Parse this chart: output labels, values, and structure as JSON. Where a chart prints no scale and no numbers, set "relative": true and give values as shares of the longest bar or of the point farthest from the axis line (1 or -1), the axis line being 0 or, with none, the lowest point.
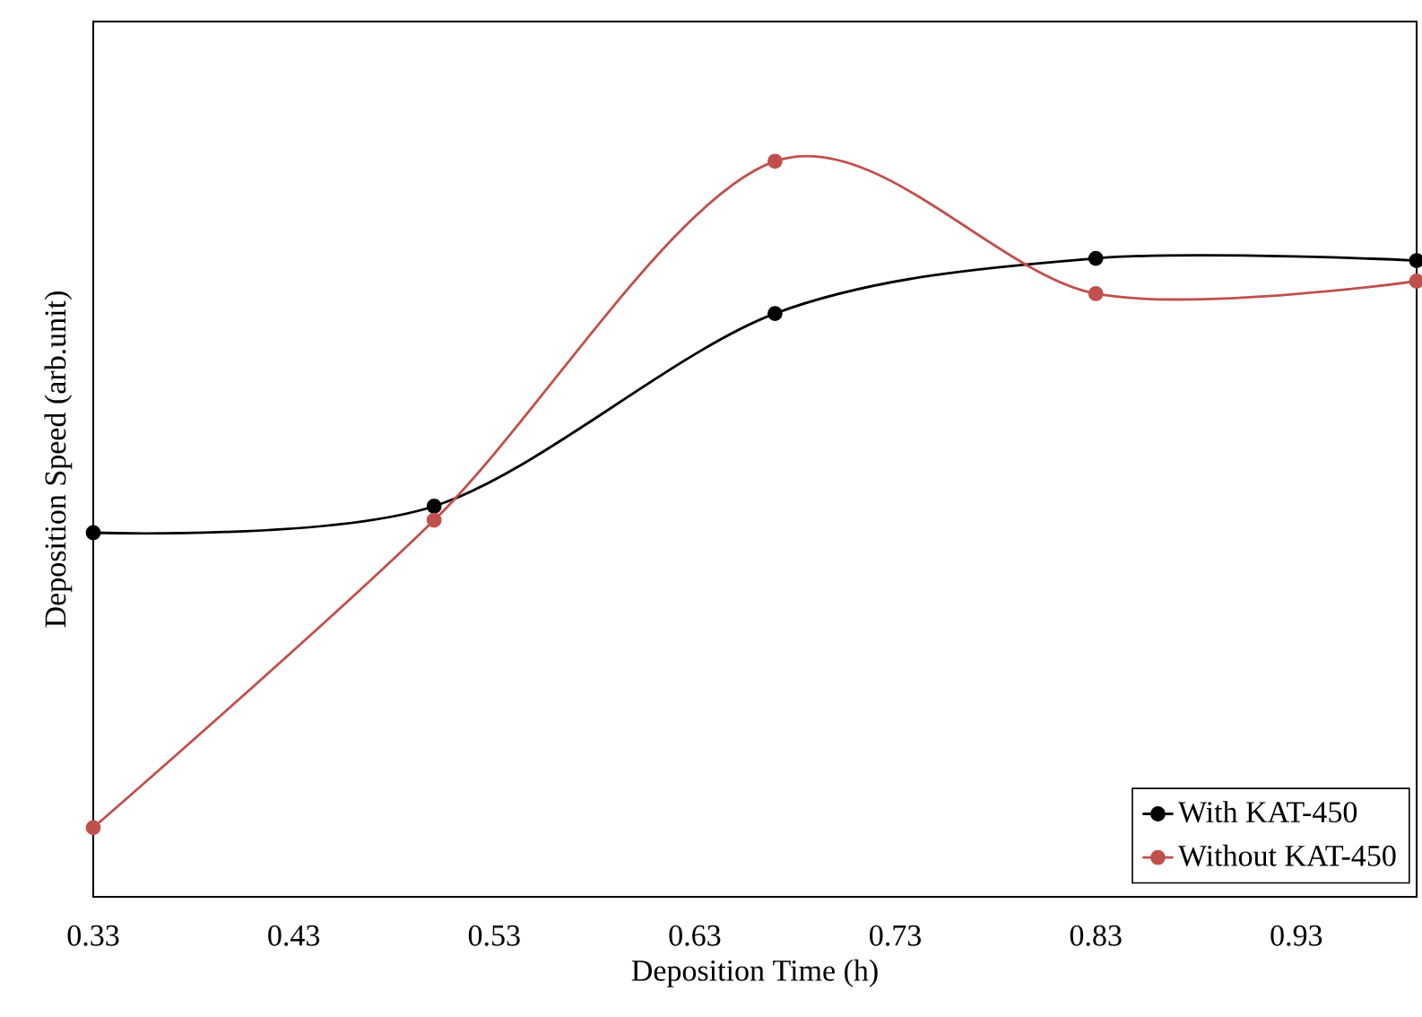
{
  "chart_data": {
    "type": "line",
    "xlabel": "Deposition Time (h)",
    "ylabel": "Deposition Speed (arb.unit)",
    "relative": true,
    "x": [
      0.33,
      0.5,
      0.67,
      0.83,
      0.99
    ],
    "series": [
      {
        "name": "With KAT-450",
        "color": "#000000",
        "values": [
          0.495,
          0.531,
          0.793,
          0.868,
          0.865
        ]
      },
      {
        "name": "Without KAT-450",
        "color": "#c0504d",
        "values": [
          0.094,
          0.512,
          1.0,
          0.82,
          0.837
        ]
      }
    ],
    "xlim": [
      0.33,
      0.99
    ],
    "xticks": [
      0.33,
      0.43,
      0.53,
      0.63,
      0.73,
      0.83,
      0.93
    ],
    "grid": false,
    "legend": "bottom right",
    "marker": "circle",
    "line_style": "solid",
    "tick_labels": "x"
  }
}
